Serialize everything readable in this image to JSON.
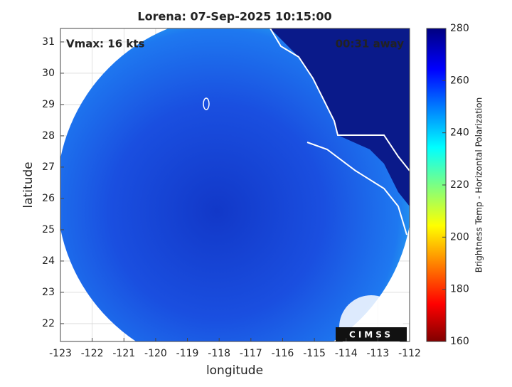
{
  "chart_data": {
    "type": "map",
    "title": "Lorena: 07-Sep-2025 10:15:00",
    "annotations": [
      "Vmax: 16 kts",
      "00:31 away"
    ],
    "xlabel": "longitude",
    "ylabel": "latitude",
    "xlim": [
      -123,
      -112
    ],
    "xticks": [
      -123,
      -122,
      -121,
      -120,
      -119,
      -118,
      -117,
      -116,
      -115,
      -114,
      -113,
      -112
    ],
    "ylim": [
      21.43,
      31.43
    ],
    "yticks": [
      22,
      23,
      24,
      25,
      26,
      27,
      28,
      29,
      30,
      31
    ],
    "grid": true,
    "colorbar": {
      "label": "Brightness Temp - Horizontal Polarization",
      "clim": [
        160,
        280
      ],
      "ticks": [
        160,
        180,
        200,
        220,
        240,
        260,
        280
      ]
    },
    "logo": "CIMSS"
  }
}
